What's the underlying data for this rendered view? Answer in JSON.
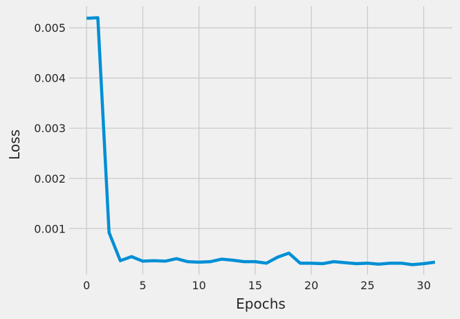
{
  "chart_data": {
    "type": "line",
    "title": "",
    "xlabel": "Epochs",
    "ylabel": "Loss",
    "xlim": [
      -1.55,
      32.55
    ],
    "ylim": [
      8e-05,
      0.00543
    ],
    "x_ticks": [
      0,
      5,
      10,
      15,
      20,
      25,
      30
    ],
    "y_ticks": [
      0.001,
      0.002,
      0.003,
      0.004,
      0.005
    ],
    "x_tick_labels": [
      "0",
      "5",
      "10",
      "15",
      "20",
      "25",
      "30"
    ],
    "y_tick_labels": [
      "0.001",
      "0.002",
      "0.003",
      "0.004",
      "0.005"
    ],
    "grid": true,
    "legend": "none",
    "series": [
      {
        "color": "#008fd5",
        "x": [
          0,
          1,
          2,
          3,
          4,
          5,
          6,
          7,
          8,
          9,
          10,
          11,
          12,
          13,
          14,
          15,
          16,
          17,
          18,
          19,
          20,
          21,
          22,
          23,
          24,
          25,
          26,
          27,
          28,
          29,
          30,
          31
        ],
        "values": [
          0.00519,
          0.0052,
          0.00092,
          0.00036,
          0.00044,
          0.00035,
          0.00036,
          0.00035,
          0.0004,
          0.00034,
          0.00033,
          0.00034,
          0.00039,
          0.00037,
          0.00034,
          0.00034,
          0.00031,
          0.00043,
          0.00051,
          0.00031,
          0.00031,
          0.0003,
          0.00034,
          0.00032,
          0.0003,
          0.00031,
          0.00029,
          0.00031,
          0.00031,
          0.00028,
          0.0003,
          0.00033
        ]
      }
    ]
  }
}
